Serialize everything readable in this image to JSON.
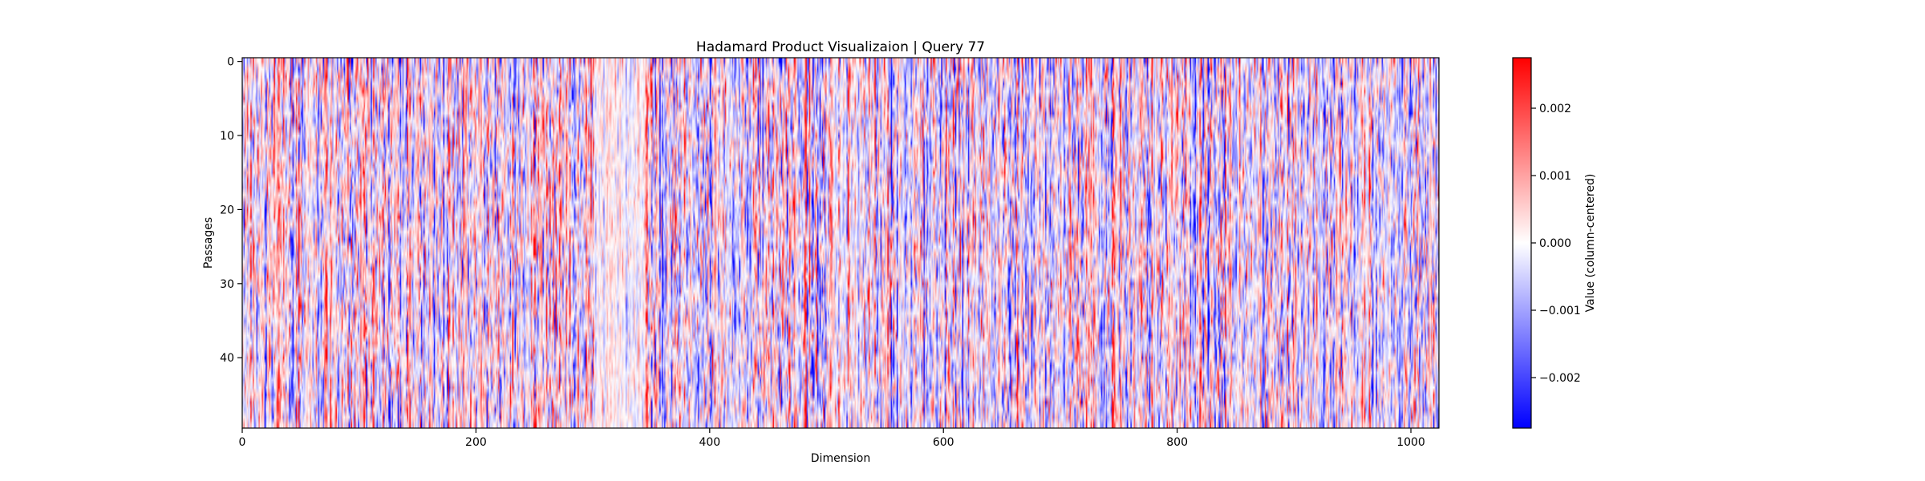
{
  "chart_data": {
    "type": "heatmap",
    "title": "Hadamard Product Visualizaion | Query 77",
    "xlabel": "Dimension",
    "ylabel": "Passages",
    "x_range": [
      0,
      1024
    ],
    "y_range": [
      0,
      50
    ],
    "rows": 50,
    "columns": 1024,
    "x_ticks": [
      0,
      200,
      400,
      600,
      800,
      1000
    ],
    "x_tick_labels": [
      "0",
      "200",
      "400",
      "600",
      "800",
      "1000"
    ],
    "y_ticks": [
      0,
      10,
      20,
      30,
      40
    ],
    "y_tick_labels": [
      "0",
      "10",
      "20",
      "30",
      "40"
    ],
    "colormap": "bwr",
    "colorbar": {
      "label": "Value (column-centered)",
      "vmin": -0.00275,
      "vmax": 0.00275,
      "ticks": [
        -0.002,
        -0.001,
        0.0,
        0.001,
        0.002
      ],
      "tick_labels": [
        "−0.002",
        "−0.001",
        "0.000",
        "0.001",
        "0.002"
      ],
      "low_color": "#0000ff",
      "mid_color": "#ffffff",
      "high_color": "#ff0000"
    },
    "grid": false
  }
}
